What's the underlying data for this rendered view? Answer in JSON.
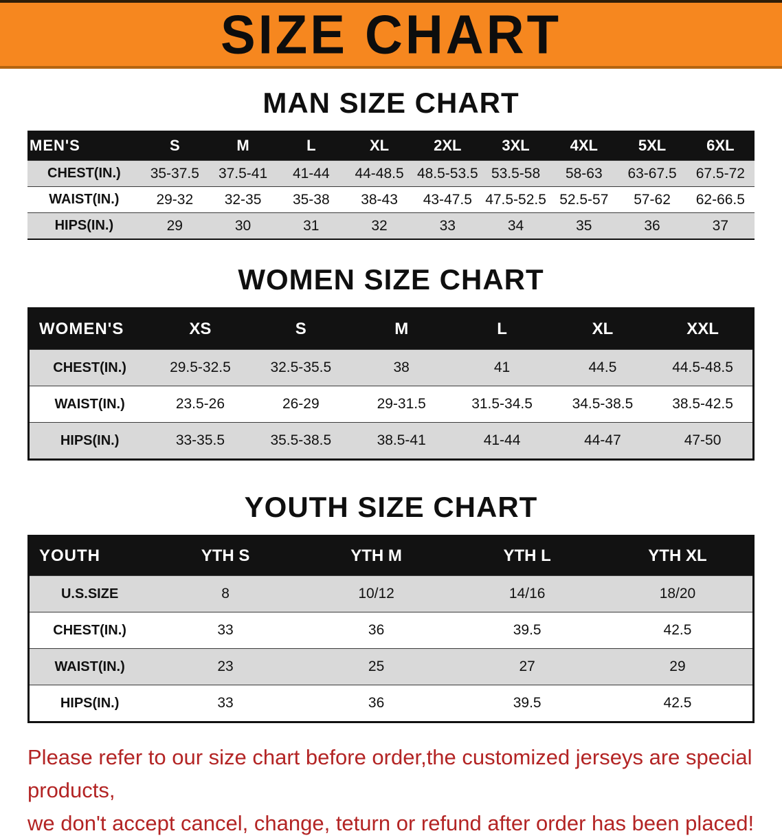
{
  "banner": {
    "title": "SIZE CHART"
  },
  "colors": {
    "banner_bg": "#f6871f",
    "table_header_bg": "#121212",
    "row_stripe": "#d9d9d9",
    "notice_red": "#b32424"
  },
  "sections": [
    {
      "heading": "MAN SIZE CHART",
      "table": {
        "label": "MEN'S",
        "columns": [
          "S",
          "M",
          "L",
          "XL",
          "2XL",
          "3XL",
          "4XL",
          "5XL",
          "6XL"
        ],
        "rows": [
          {
            "label": "CHEST(IN.)",
            "values": [
              "35-37.5",
              "37.5-41",
              "41-44",
              "44-48.5",
              "48.5-53.5",
              "53.5-58",
              "58-63",
              "63-67.5",
              "67.5-72"
            ]
          },
          {
            "label": "WAIST(IN.)",
            "values": [
              "29-32",
              "32-35",
              "35-38",
              "38-43",
              "43-47.5",
              "47.5-52.5",
              "52.5-57",
              "57-62",
              "62-66.5"
            ]
          },
          {
            "label": "HIPS(IN.)",
            "values": [
              "29",
              "30",
              "31",
              "32",
              "33",
              "34",
              "35",
              "36",
              "37"
            ]
          }
        ]
      }
    },
    {
      "heading": "WOMEN SIZE CHART",
      "table": {
        "label": "WOMEN'S",
        "columns": [
          "XS",
          "S",
          "M",
          "L",
          "XL",
          "XXL"
        ],
        "rows": [
          {
            "label": "CHEST(IN.)",
            "values": [
              "29.5-32.5",
              "32.5-35.5",
              "38",
              "41",
              "44.5",
              "44.5-48.5"
            ]
          },
          {
            "label": "WAIST(IN.)",
            "values": [
              "23.5-26",
              "26-29",
              "29-31.5",
              "31.5-34.5",
              "34.5-38.5",
              "38.5-42.5"
            ]
          },
          {
            "label": "HIPS(IN.)",
            "values": [
              "33-35.5",
              "35.5-38.5",
              "38.5-41",
              "41-44",
              "44-47",
              "47-50"
            ]
          }
        ]
      }
    },
    {
      "heading": "YOUTH SIZE CHART",
      "table": {
        "label": "YOUTH",
        "columns": [
          "YTH S",
          "YTH M",
          "YTH L",
          "YTH XL"
        ],
        "rows": [
          {
            "label": "U.S.SIZE",
            "values": [
              "8",
              "10/12",
              "14/16",
              "18/20"
            ]
          },
          {
            "label": "CHEST(IN.)",
            "values": [
              "33",
              "36",
              "39.5",
              "42.5"
            ]
          },
          {
            "label": "WAIST(IN.)",
            "values": [
              "23",
              "25",
              "27",
              "29"
            ]
          },
          {
            "label": "HIPS(IN.)",
            "values": [
              "33",
              "36",
              "39.5",
              "42.5"
            ]
          }
        ]
      }
    }
  ],
  "footer": {
    "line1": "Please refer to our size chart before order,the customized jerseys are special products,",
    "line2": "we don't accept cancel, change, teturn or refund after order has been placed!"
  }
}
